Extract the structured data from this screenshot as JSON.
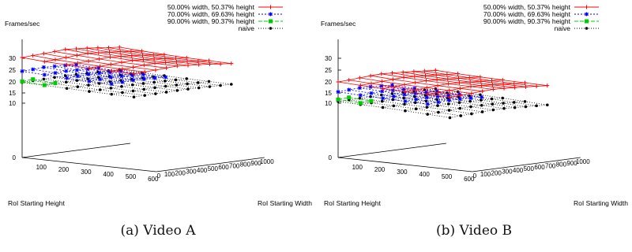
{
  "chart_data": [
    {
      "type": "surface3d",
      "caption": "(a) Video A",
      "zlabel": "Frames/sec",
      "xlabel": "RoI Starting Height",
      "ylabel": "RoI Starting Width",
      "height_ticks": [
        "100",
        "200",
        "300",
        "400",
        "500",
        "600"
      ],
      "width_ticks": [
        "0",
        "100",
        "200",
        "300",
        "400",
        "500",
        "600",
        "700",
        "800",
        "900",
        "1000"
      ],
      "z_ticks": [
        "0",
        "10",
        "15",
        "20",
        "25",
        "30"
      ],
      "zlim": [
        0,
        30
      ],
      "legend": [
        {
          "name": "50.00% width, 50.37% height",
          "color": "#ff0000",
          "marker": "plus",
          "dash": ""
        },
        {
          "name": "70.00% width, 69.63% height",
          "color": "#0000ff",
          "marker": "star",
          "dash": "2,2"
        },
        {
          "name": "90.00% width, 90.37% height",
          "color": "#00cc00",
          "marker": "square",
          "dash": "5,2"
        },
        {
          "name": "naive",
          "color": "#000000",
          "marker": "dot",
          "dash": "1,2"
        }
      ],
      "series": [
        {
          "name": "50.00% width, 50.37% height",
          "heights": [
            0,
            100,
            200,
            300,
            400,
            500
          ],
          "widths": [
            0,
            100,
            200,
            300,
            400,
            500,
            600,
            700,
            800,
            900
          ],
          "z": [
            [
              30.3,
              30.5,
              30.7,
              30.9,
              31.2,
              30.9,
              30.6,
              30.2,
              29.7,
              29.3
            ],
            [
              29.6,
              29.8,
              30.1,
              30.4,
              30.6,
              30.3,
              30.0,
              29.6,
              29.1,
              28.7
            ],
            [
              29.2,
              29.4,
              29.6,
              29.9,
              30.1,
              29.8,
              29.5,
              29.1,
              28.6,
              28.2
            ],
            [
              28.8,
              29.0,
              29.2,
              29.5,
              29.7,
              29.4,
              29.1,
              28.7,
              28.2,
              27.8
            ],
            [
              28.6,
              28.8,
              29.0,
              29.3,
              29.5,
              29.2,
              28.9,
              28.5,
              28.0,
              27.6
            ],
            [
              28.4,
              28.6,
              28.8,
              29.1,
              29.3,
              29.0,
              28.7,
              28.3,
              27.8,
              27.4
            ]
          ]
        },
        {
          "name": "70.00% width, 69.63% height",
          "heights": [
            0,
            100,
            200,
            300,
            400
          ],
          "widths": [
            0,
            100,
            200,
            300,
            400,
            500
          ],
          "z": [
            [
              24.5,
              24.7,
              25.0,
              24.8,
              24.6,
              24.3
            ],
            [
              24.0,
              24.2,
              24.4,
              24.2,
              24.0,
              23.8
            ],
            [
              23.6,
              23.8,
              24.0,
              23.9,
              23.7,
              23.5
            ],
            [
              23.3,
              23.5,
              23.7,
              23.6,
              23.4,
              23.2
            ],
            [
              23.1,
              23.3,
              23.5,
              23.4,
              23.2,
              23.0
            ]
          ]
        },
        {
          "name": "90.00% width, 90.37% height",
          "heights": [
            0,
            100
          ],
          "widths": [
            0,
            100
          ],
          "z": [
            [
              20.2,
              20.5
            ],
            [
              19.6,
              19.9
            ]
          ]
        },
        {
          "name": "naive",
          "heights": [
            0,
            100,
            200,
            300,
            400,
            500
          ],
          "widths": [
            0,
            100,
            200,
            300,
            400,
            500,
            600,
            700,
            800,
            900
          ],
          "z": [
            [
              19.8,
              19.9,
              20.0,
              20.1,
              20.2,
              20.2,
              20.1,
              20.0,
              19.9,
              19.8
            ],
            [
              19.5,
              19.6,
              19.7,
              19.8,
              19.9,
              19.9,
              19.8,
              19.7,
              19.6,
              19.5
            ],
            [
              19.2,
              19.3,
              19.4,
              19.5,
              19.6,
              19.6,
              19.5,
              19.4,
              19.3,
              19.2
            ],
            [
              18.9,
              19.0,
              19.1,
              19.2,
              19.3,
              19.3,
              19.2,
              19.1,
              19.0,
              18.9
            ],
            [
              18.7,
              18.8,
              18.9,
              19.0,
              19.1,
              19.1,
              19.0,
              18.9,
              18.8,
              18.7
            ],
            [
              18.5,
              18.6,
              18.7,
              18.8,
              18.9,
              18.9,
              18.8,
              18.7,
              18.6,
              18.5
            ]
          ]
        }
      ]
    },
    {
      "type": "surface3d",
      "caption": "(b) Video B",
      "zlabel": "Frames/sec",
      "xlabel": "RoI Starting Height",
      "ylabel": "RoI Starting Width",
      "height_ticks": [
        "100",
        "200",
        "300",
        "400",
        "500",
        "600"
      ],
      "width_ticks": [
        "0",
        "100",
        "200",
        "300",
        "400",
        "500",
        "600",
        "700",
        "800",
        "900",
        "1000"
      ],
      "z_ticks": [
        "0",
        "10",
        "15",
        "20",
        "25",
        "30"
      ],
      "zlim": [
        0,
        30
      ],
      "legend": [
        {
          "name": "50.00% width, 50.37% height",
          "color": "#ff0000",
          "marker": "plus",
          "dash": ""
        },
        {
          "name": "70.00% width, 69.63% height",
          "color": "#0000ff",
          "marker": "star",
          "dash": "2,2"
        },
        {
          "name": "90.00% width, 90.37% height",
          "color": "#00cc00",
          "marker": "square",
          "dash": "5,2"
        },
        {
          "name": "naive",
          "color": "#000000",
          "marker": "dot",
          "dash": "1,2"
        }
      ],
      "series": [
        {
          "name": "50.00% width, 50.37% height",
          "heights": [
            0,
            100,
            200,
            300,
            400,
            500
          ],
          "widths": [
            0,
            100,
            200,
            300,
            400,
            500,
            600,
            700,
            800,
            900
          ],
          "z": [
            [
              20.0,
              20.2,
              20.5,
              20.8,
              21.0,
              20.8,
              20.5,
              20.2,
              19.8,
              19.5
            ],
            [
              19.5,
              19.7,
              20.0,
              20.3,
              20.5,
              20.3,
              20.0,
              19.7,
              19.3,
              19.0
            ],
            [
              19.1,
              19.3,
              19.6,
              19.9,
              20.1,
              19.9,
              19.6,
              19.3,
              18.9,
              18.6
            ],
            [
              18.8,
              19.0,
              19.3,
              19.6,
              19.8,
              19.6,
              19.3,
              19.0,
              18.6,
              18.3
            ],
            [
              18.6,
              18.8,
              19.1,
              19.4,
              19.6,
              19.4,
              19.1,
              18.8,
              18.4,
              18.1
            ],
            [
              18.4,
              18.6,
              18.9,
              19.2,
              19.4,
              19.2,
              18.9,
              18.6,
              18.2,
              17.9
            ]
          ]
        },
        {
          "name": "70.00% width, 69.63% height",
          "heights": [
            0,
            100,
            200,
            300,
            400
          ],
          "widths": [
            0,
            100,
            200,
            300,
            400,
            500
          ],
          "z": [
            [
              15.5,
              15.8,
              16.0,
              15.8,
              15.6,
              15.3
            ],
            [
              15.0,
              15.3,
              15.5,
              15.3,
              15.1,
              14.9
            ],
            [
              14.7,
              14.9,
              15.1,
              15.0,
              14.8,
              14.6
            ],
            [
              14.4,
              14.6,
              14.8,
              14.7,
              14.5,
              14.3
            ],
            [
              14.2,
              14.4,
              14.6,
              14.5,
              14.3,
              14.1
            ]
          ]
        },
        {
          "name": "90.00% width, 90.37% height",
          "heights": [
            0,
            100
          ],
          "widths": [
            0,
            100
          ],
          "z": [
            [
              11.8,
              12.1
            ],
            [
              11.2,
              11.5
            ]
          ]
        },
        {
          "name": "naive",
          "heights": [
            0,
            100,
            200,
            300,
            400,
            500
          ],
          "widths": [
            0,
            100,
            200,
            300,
            400,
            500,
            600,
            700,
            800,
            900
          ],
          "z": [
            [
              10.8,
              10.9,
              11.0,
              11.1,
              11.2,
              11.2,
              11.1,
              11.0,
              10.9,
              10.8
            ],
            [
              10.5,
              10.6,
              10.7,
              10.8,
              10.9,
              10.9,
              10.8,
              10.7,
              10.6,
              10.5
            ],
            [
              10.2,
              10.3,
              10.4,
              10.5,
              10.6,
              10.6,
              10.5,
              10.4,
              10.3,
              10.2
            ],
            [
              9.9,
              10.0,
              10.1,
              10.2,
              10.3,
              10.3,
              10.2,
              10.1,
              10.0,
              9.9
            ],
            [
              9.7,
              9.8,
              9.9,
              10.0,
              10.1,
              10.1,
              10.0,
              9.9,
              9.8,
              9.7
            ],
            [
              9.5,
              9.6,
              9.7,
              9.8,
              9.9,
              9.9,
              9.8,
              9.7,
              9.6,
              9.5
            ]
          ]
        }
      ]
    }
  ]
}
